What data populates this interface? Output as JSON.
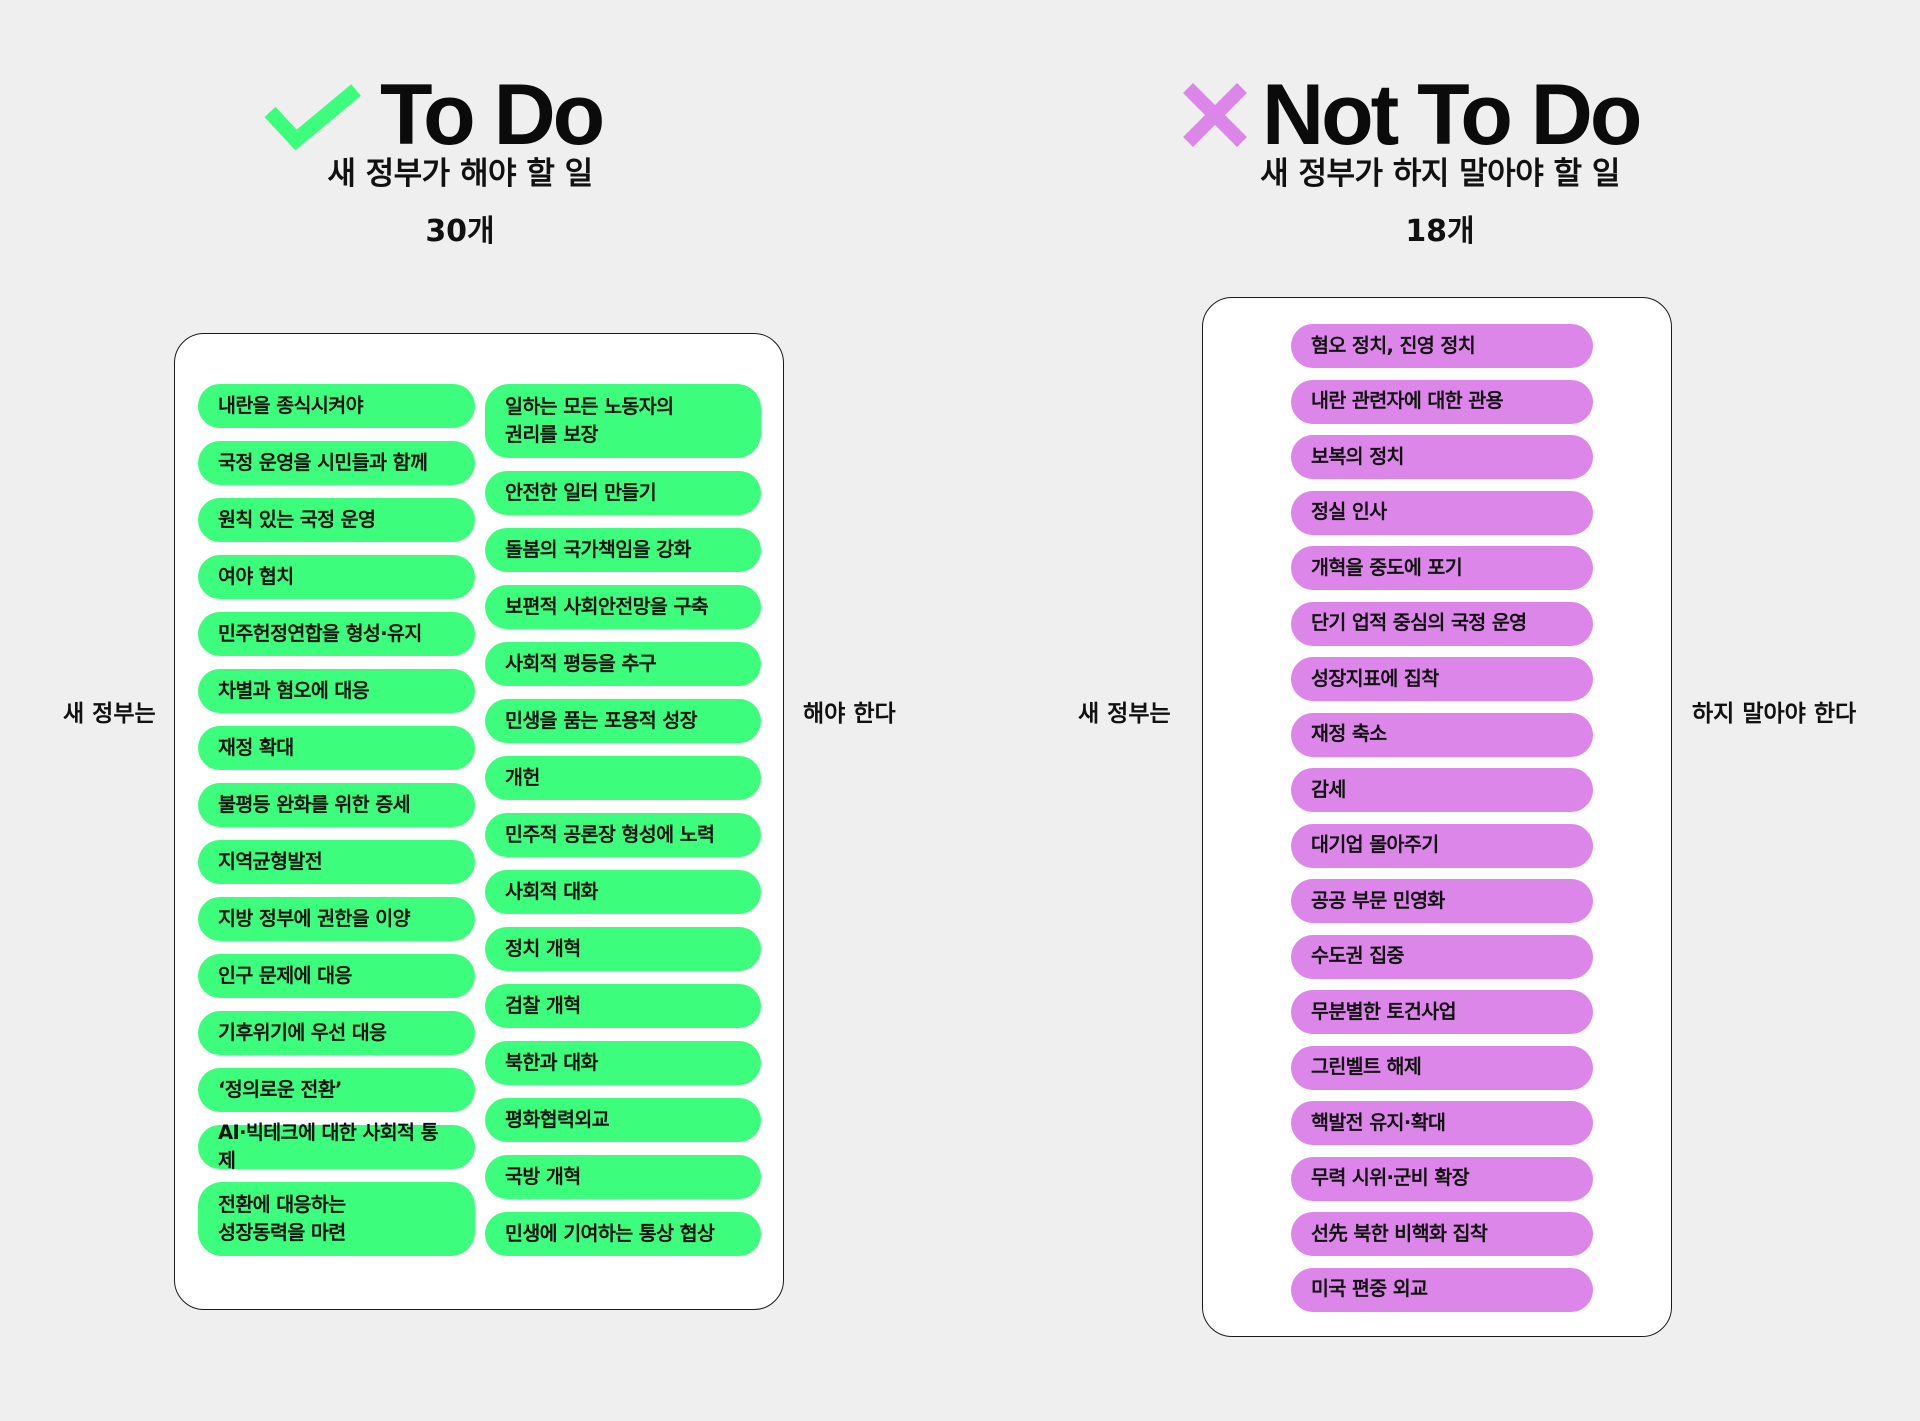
{
  "todo": {
    "title": "To Do",
    "subtitle": "새 정부가 해야 할 일",
    "count": "30개",
    "check_color": "#3dfd7d",
    "icon": "check-icon",
    "label_left": "새 정부는",
    "label_right": "해야 한다",
    "left_items": [
      "내란을 종식시켜야",
      "국정 운영을 시민들과 함께",
      "원칙 있는 국정 운영",
      "여야 협치",
      "민주헌정연합을 형성·유지",
      "차별과 혐오에 대응",
      "재정 확대",
      "불평등 완화를 위한 증세",
      "지역균형발전",
      "지방 정부에 권한을 이양",
      "인구 문제에 대응",
      "기후위기에 우선 대응",
      "‘정의로운 전환’",
      "AI·빅테크에 대한 사회적 통제",
      "전환에 대응하는\n성장동력을 마련"
    ],
    "right_items": [
      "일하는 모든 노동자의\n권리를 보장",
      "안전한 일터 만들기",
      "돌봄의 국가책임을 강화",
      "보편적 사회안전망을 구축",
      "사회적 평등을 추구",
      "민생을 품는 포용적 성장",
      "개헌",
      "민주적 공론장 형성에 노력",
      "사회적 대화",
      "정치 개혁",
      "검찰 개혁",
      "북한과 대화",
      "평화협력외교",
      "국방 개혁",
      "민생에 기여하는 통상 협상"
    ]
  },
  "not_todo": {
    "title": "Not To Do",
    "subtitle": "새 정부가 하지 말아야 할 일",
    "count": "18개",
    "x_color": "#dd86e9",
    "icon": "cross-icon",
    "label_left": "새 정부는",
    "label_right": "하지 말아야 한다",
    "items": [
      "혐오 정치, 진영 정치",
      "내란 관련자에 대한 관용",
      "보복의 정치",
      "정실 인사",
      "개혁을 중도에 포기",
      "단기 업적 중심의 국정 운영",
      "성장지표에 집착",
      "재정 축소",
      "감세",
      "대기업 몰아주기",
      "공공 부문 민영화",
      "수도권 집중",
      "무분별한 토건사업",
      "그린벨트 해제",
      "핵발전 유지·확대",
      "무력 시위·군비 확장",
      "선先 북한 비핵화 집착",
      "미국 편중 외교"
    ]
  }
}
